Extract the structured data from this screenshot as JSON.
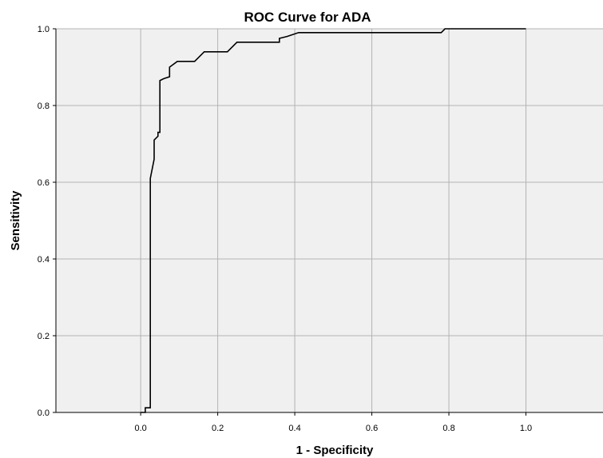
{
  "colors": {
    "plot_background": "#f0f0f0",
    "grid": "#b3b3b3",
    "axis": "#000000",
    "curve": "#000000"
  },
  "chart_data": {
    "type": "line",
    "title": "ROC Curve for ADA",
    "xlabel": "1 - Specificity",
    "ylabel": "Sensitivity",
    "xlim": [
      -0.22,
      1.2
    ],
    "ylim": [
      0,
      1.0
    ],
    "grid": true,
    "legend": "none",
    "x_ticks": [
      0.0,
      0.2,
      0.4,
      0.6,
      0.8,
      1.0
    ],
    "x_tick_labels": [
      "0.0",
      "0.2",
      "0.4",
      "0.6",
      "0.8",
      "1.0"
    ],
    "y_ticks": [
      0.0,
      0.2,
      0.4,
      0.6,
      0.8,
      1.0
    ],
    "y_tick_labels": [
      "0.0",
      "0.2",
      "0.4",
      "0.6",
      "0.8",
      "1.0"
    ],
    "series": [
      {
        "x": [
          0.0,
          0.012,
          0.012,
          0.025,
          0.025,
          0.035,
          0.035,
          0.045,
          0.045,
          0.05,
          0.05,
          0.06,
          0.075,
          0.075,
          0.095,
          0.14,
          0.165,
          0.225,
          0.25,
          0.36,
          0.36,
          0.38,
          0.41,
          0.78,
          0.79,
          1.0
        ],
        "y": [
          0.0,
          0.0,
          0.012,
          0.012,
          0.61,
          0.66,
          0.71,
          0.72,
          0.73,
          0.73,
          0.865,
          0.87,
          0.875,
          0.9,
          0.915,
          0.915,
          0.94,
          0.94,
          0.965,
          0.965,
          0.975,
          0.98,
          0.99,
          0.99,
          1.0,
          1.0
        ]
      }
    ]
  }
}
